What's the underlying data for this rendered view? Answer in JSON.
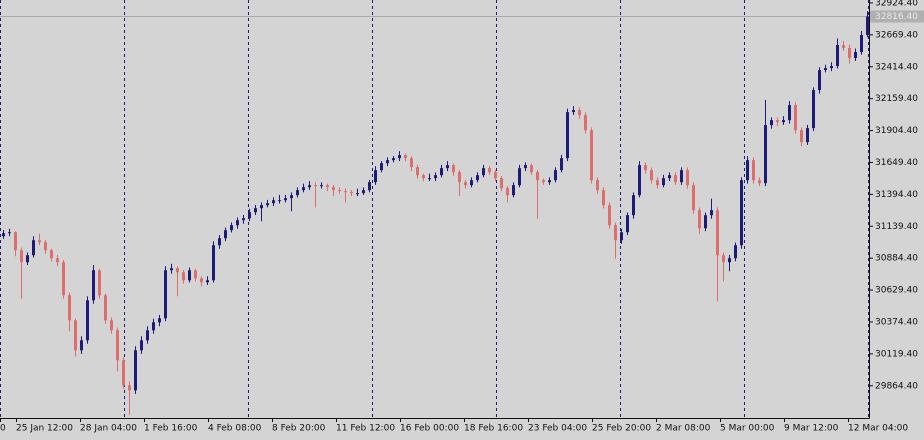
{
  "chart_data": {
    "type": "candlestick",
    "up_color": "#1c1c78",
    "down_color": "#de6e6c",
    "ylim": [
      29607,
      32948
    ],
    "yticks": [
      {
        "value": 32924.4,
        "label": "32924.40"
      },
      {
        "value": 32669.4,
        "label": "32669.40"
      },
      {
        "value": 32414.4,
        "label": "32414.40"
      },
      {
        "value": 32159.4,
        "label": "32159.40"
      },
      {
        "value": 31904.4,
        "label": "31904.40"
      },
      {
        "value": 31649.4,
        "label": "31649.40"
      },
      {
        "value": 31394.4,
        "label": "31394.40"
      },
      {
        "value": 31139.4,
        "label": "31139.40"
      },
      {
        "value": 30884.4,
        "label": "30884.40"
      },
      {
        "value": 30629.4,
        "label": "30629.40"
      },
      {
        "value": 30374.4,
        "label": "30374.40"
      },
      {
        "value": 30119.4,
        "label": "30119.40"
      },
      {
        "value": 29864.4,
        "label": "29864.40"
      }
    ],
    "bid": {
      "value": 32816.4,
      "label": "32816.40"
    },
    "x_labels": [
      "0",
      "25 Jan 12:00",
      "28 Jan 04:00",
      "1 Feb 16:00",
      "4 Feb 08:00",
      "8 Feb 20:00",
      "11 Feb 12:00",
      "16 Feb 00:00",
      "18 Feb 16:00",
      "23 Feb 04:00",
      "25 Feb 20:00",
      "2 Mar 08:00",
      "5 Mar 00:00",
      "9 Mar 12:00",
      "12 Mar 04:00"
    ],
    "candles": [
      [
        31060,
        31110,
        31040,
        31084
      ],
      [
        31084,
        31120,
        31060,
        31092
      ],
      [
        31092,
        31100,
        30900,
        30948
      ],
      [
        30948,
        30970,
        30560,
        30852
      ],
      [
        30852,
        30930,
        30830,
        30908
      ],
      [
        30908,
        31060,
        30890,
        31028
      ],
      [
        31028,
        31080,
        30990,
        31012
      ],
      [
        31012,
        31030,
        30920,
        30948
      ],
      [
        30948,
        30960,
        30860,
        30884
      ],
      [
        30884,
        30910,
        30820,
        30852
      ],
      [
        30852,
        30870,
        30560,
        30588
      ],
      [
        30588,
        30610,
        30300,
        30388
      ],
      [
        30388,
        30400,
        30100,
        30148
      ],
      [
        30148,
        30260,
        30120,
        30228
      ],
      [
        30228,
        30580,
        30200,
        30548
      ],
      [
        30548,
        30830,
        30520,
        30788
      ],
      [
        30788,
        30800,
        30560,
        30588
      ],
      [
        30588,
        30600,
        30360,
        30388
      ],
      [
        30388,
        30410,
        30280,
        30308
      ],
      [
        30308,
        30330,
        29980,
        30068
      ],
      [
        30068,
        30090,
        29840,
        29868
      ],
      [
        29868,
        29900,
        29630,
        29828
      ],
      [
        29828,
        30180,
        29800,
        30148
      ],
      [
        30148,
        30260,
        30120,
        30228
      ],
      [
        30228,
        30340,
        30200,
        30308
      ],
      [
        30308,
        30400,
        30280,
        30372
      ],
      [
        30372,
        30430,
        30340,
        30404
      ],
      [
        30404,
        30820,
        30380,
        30788
      ],
      [
        30788,
        30840,
        30760,
        30804
      ],
      [
        30804,
        30820,
        30580,
        30772
      ],
      [
        30772,
        30790,
        30680,
        30708
      ],
      [
        30708,
        30810,
        30690,
        30788
      ],
      [
        30788,
        30800,
        30700,
        30724
      ],
      [
        30724,
        30740,
        30660,
        30692
      ],
      [
        30692,
        30740,
        30670,
        30708
      ],
      [
        30708,
        31020,
        30690,
        30988
      ],
      [
        30988,
        31070,
        30960,
        31044
      ],
      [
        31044,
        31130,
        31020,
        31108
      ],
      [
        31108,
        31170,
        31090,
        31148
      ],
      [
        31148,
        31210,
        31120,
        31188
      ],
      [
        31188,
        31230,
        31160,
        31204
      ],
      [
        31204,
        31280,
        31180,
        31252
      ],
      [
        31252,
        31310,
        31230,
        31284
      ],
      [
        31284,
        31330,
        31180,
        31308
      ],
      [
        31308,
        31350,
        31290,
        31324
      ],
      [
        31324,
        31370,
        31300,
        31348
      ],
      [
        31348,
        31390,
        31320,
        31348
      ],
      [
        31348,
        31390,
        31330,
        31364
      ],
      [
        31364,
        31410,
        31260,
        31388
      ],
      [
        31388,
        31450,
        31370,
        31428
      ],
      [
        31428,
        31480,
        31410,
        31452
      ],
      [
        31452,
        31500,
        31430,
        31468
      ],
      [
        31468,
        31490,
        31290,
        31460
      ],
      [
        31460,
        31490,
        31440,
        31468
      ],
      [
        31468,
        31480,
        31420,
        31452
      ],
      [
        31452,
        31470,
        31380,
        31428
      ],
      [
        31428,
        31450,
        31400,
        31420
      ],
      [
        31420,
        31440,
        31330,
        31412
      ],
      [
        31412,
        31430,
        31380,
        31404
      ],
      [
        31404,
        31440,
        31380,
        31404
      ],
      [
        31404,
        31450,
        31390,
        31428
      ],
      [
        31428,
        31510,
        31410,
        31492
      ],
      [
        31492,
        31620,
        31470,
        31588
      ],
      [
        31588,
        31660,
        31570,
        31644
      ],
      [
        31644,
        31690,
        31620,
        31668
      ],
      [
        31668,
        31700,
        31650,
        31684
      ],
      [
        31684,
        31740,
        31660,
        31708
      ],
      [
        31708,
        31720,
        31660,
        31684
      ],
      [
        31684,
        31700,
        31580,
        31612
      ],
      [
        31612,
        31630,
        31520,
        31548
      ],
      [
        31548,
        31560,
        31500,
        31524
      ],
      [
        31524,
        31560,
        31500,
        31524
      ],
      [
        31524,
        31570,
        31500,
        31548
      ],
      [
        31548,
        31630,
        31530,
        31604
      ],
      [
        31604,
        31660,
        31580,
        31628
      ],
      [
        31628,
        31640,
        31540,
        31572
      ],
      [
        31572,
        31590,
        31380,
        31492
      ],
      [
        31492,
        31510,
        31440,
        31468
      ],
      [
        31468,
        31530,
        31450,
        31508
      ],
      [
        31508,
        31570,
        31490,
        31548
      ],
      [
        31548,
        31630,
        31530,
        31604
      ],
      [
        31604,
        31620,
        31550,
        31572
      ],
      [
        31572,
        31590,
        31500,
        31524
      ],
      [
        31524,
        31540,
        31420,
        31444
      ],
      [
        31444,
        31460,
        31330,
        31388
      ],
      [
        31388,
        31490,
        31370,
        31468
      ],
      [
        31468,
        31630,
        31450,
        31604
      ],
      [
        31604,
        31650,
        31580,
        31628
      ],
      [
        31628,
        31640,
        31550,
        31572
      ],
      [
        31572,
        31590,
        31200,
        31508
      ],
      [
        31508,
        31520,
        31470,
        31492
      ],
      [
        31492,
        31530,
        31470,
        31508
      ],
      [
        31508,
        31610,
        31490,
        31588
      ],
      [
        31588,
        31710,
        31570,
        31684
      ],
      [
        31684,
        32080,
        31660,
        32052
      ],
      [
        32052,
        32100,
        32030,
        32068
      ],
      [
        32068,
        32090,
        32000,
        32028
      ],
      [
        32028,
        32050,
        31880,
        31908
      ],
      [
        31908,
        31930,
        31480,
        31508
      ],
      [
        31508,
        31530,
        31400,
        31428
      ],
      [
        31428,
        31450,
        31280,
        31308
      ],
      [
        31308,
        31330,
        31120,
        31148
      ],
      [
        31148,
        31170,
        30880,
        31028
      ],
      [
        31028,
        31120,
        31000,
        31092
      ],
      [
        31092,
        31250,
        31070,
        31228
      ],
      [
        31228,
        31410,
        31200,
        31388
      ],
      [
        31388,
        31660,
        31370,
        31628
      ],
      [
        31628,
        31650,
        31560,
        31588
      ],
      [
        31588,
        31610,
        31480,
        31508
      ],
      [
        31508,
        31530,
        31440,
        31468
      ],
      [
        31468,
        31550,
        31450,
        31524
      ],
      [
        31524,
        31570,
        31500,
        31548
      ],
      [
        31548,
        31570,
        31470,
        31492
      ],
      [
        31492,
        31610,
        31470,
        31588
      ],
      [
        31588,
        31610,
        31440,
        31468
      ],
      [
        31468,
        31490,
        31240,
        31268
      ],
      [
        31268,
        31290,
        31080,
        31124
      ],
      [
        31124,
        31250,
        31100,
        31228
      ],
      [
        31228,
        31360,
        31200,
        31268
      ],
      [
        31268,
        31290,
        30540,
        30908
      ],
      [
        30908,
        30930,
        30700,
        30852
      ],
      [
        30852,
        30910,
        30780,
        30884
      ],
      [
        30884,
        31010,
        30860,
        30988
      ],
      [
        30988,
        31530,
        30960,
        31508
      ],
      [
        31508,
        31700,
        31480,
        31668
      ],
      [
        31668,
        31690,
        31480,
        31508
      ],
      [
        31508,
        31530,
        31460,
        31484
      ],
      [
        31484,
        32150,
        31460,
        31948
      ],
      [
        31948,
        32010,
        31920,
        31988
      ],
      [
        31988,
        32010,
        31940,
        31972
      ],
      [
        31972,
        32020,
        31950,
        31988
      ],
      [
        31988,
        32140,
        31960,
        32108
      ],
      [
        32108,
        32130,
        31880,
        31908
      ],
      [
        31908,
        31930,
        31780,
        31812
      ],
      [
        31812,
        31950,
        31790,
        31924
      ],
      [
        31924,
        32250,
        31900,
        32228
      ],
      [
        32228,
        32410,
        32200,
        32388
      ],
      [
        32388,
        32430,
        32370,
        32404
      ],
      [
        32404,
        32450,
        32380,
        32420
      ],
      [
        32420,
        32640,
        32400,
        32588
      ],
      [
        32588,
        32620,
        32540,
        32564
      ],
      [
        32564,
        32590,
        32440,
        32484
      ],
      [
        32484,
        32560,
        32460,
        32532
      ],
      [
        32532,
        32700,
        32510,
        32668
      ],
      [
        32668,
        32860,
        32650,
        32816
      ]
    ]
  }
}
